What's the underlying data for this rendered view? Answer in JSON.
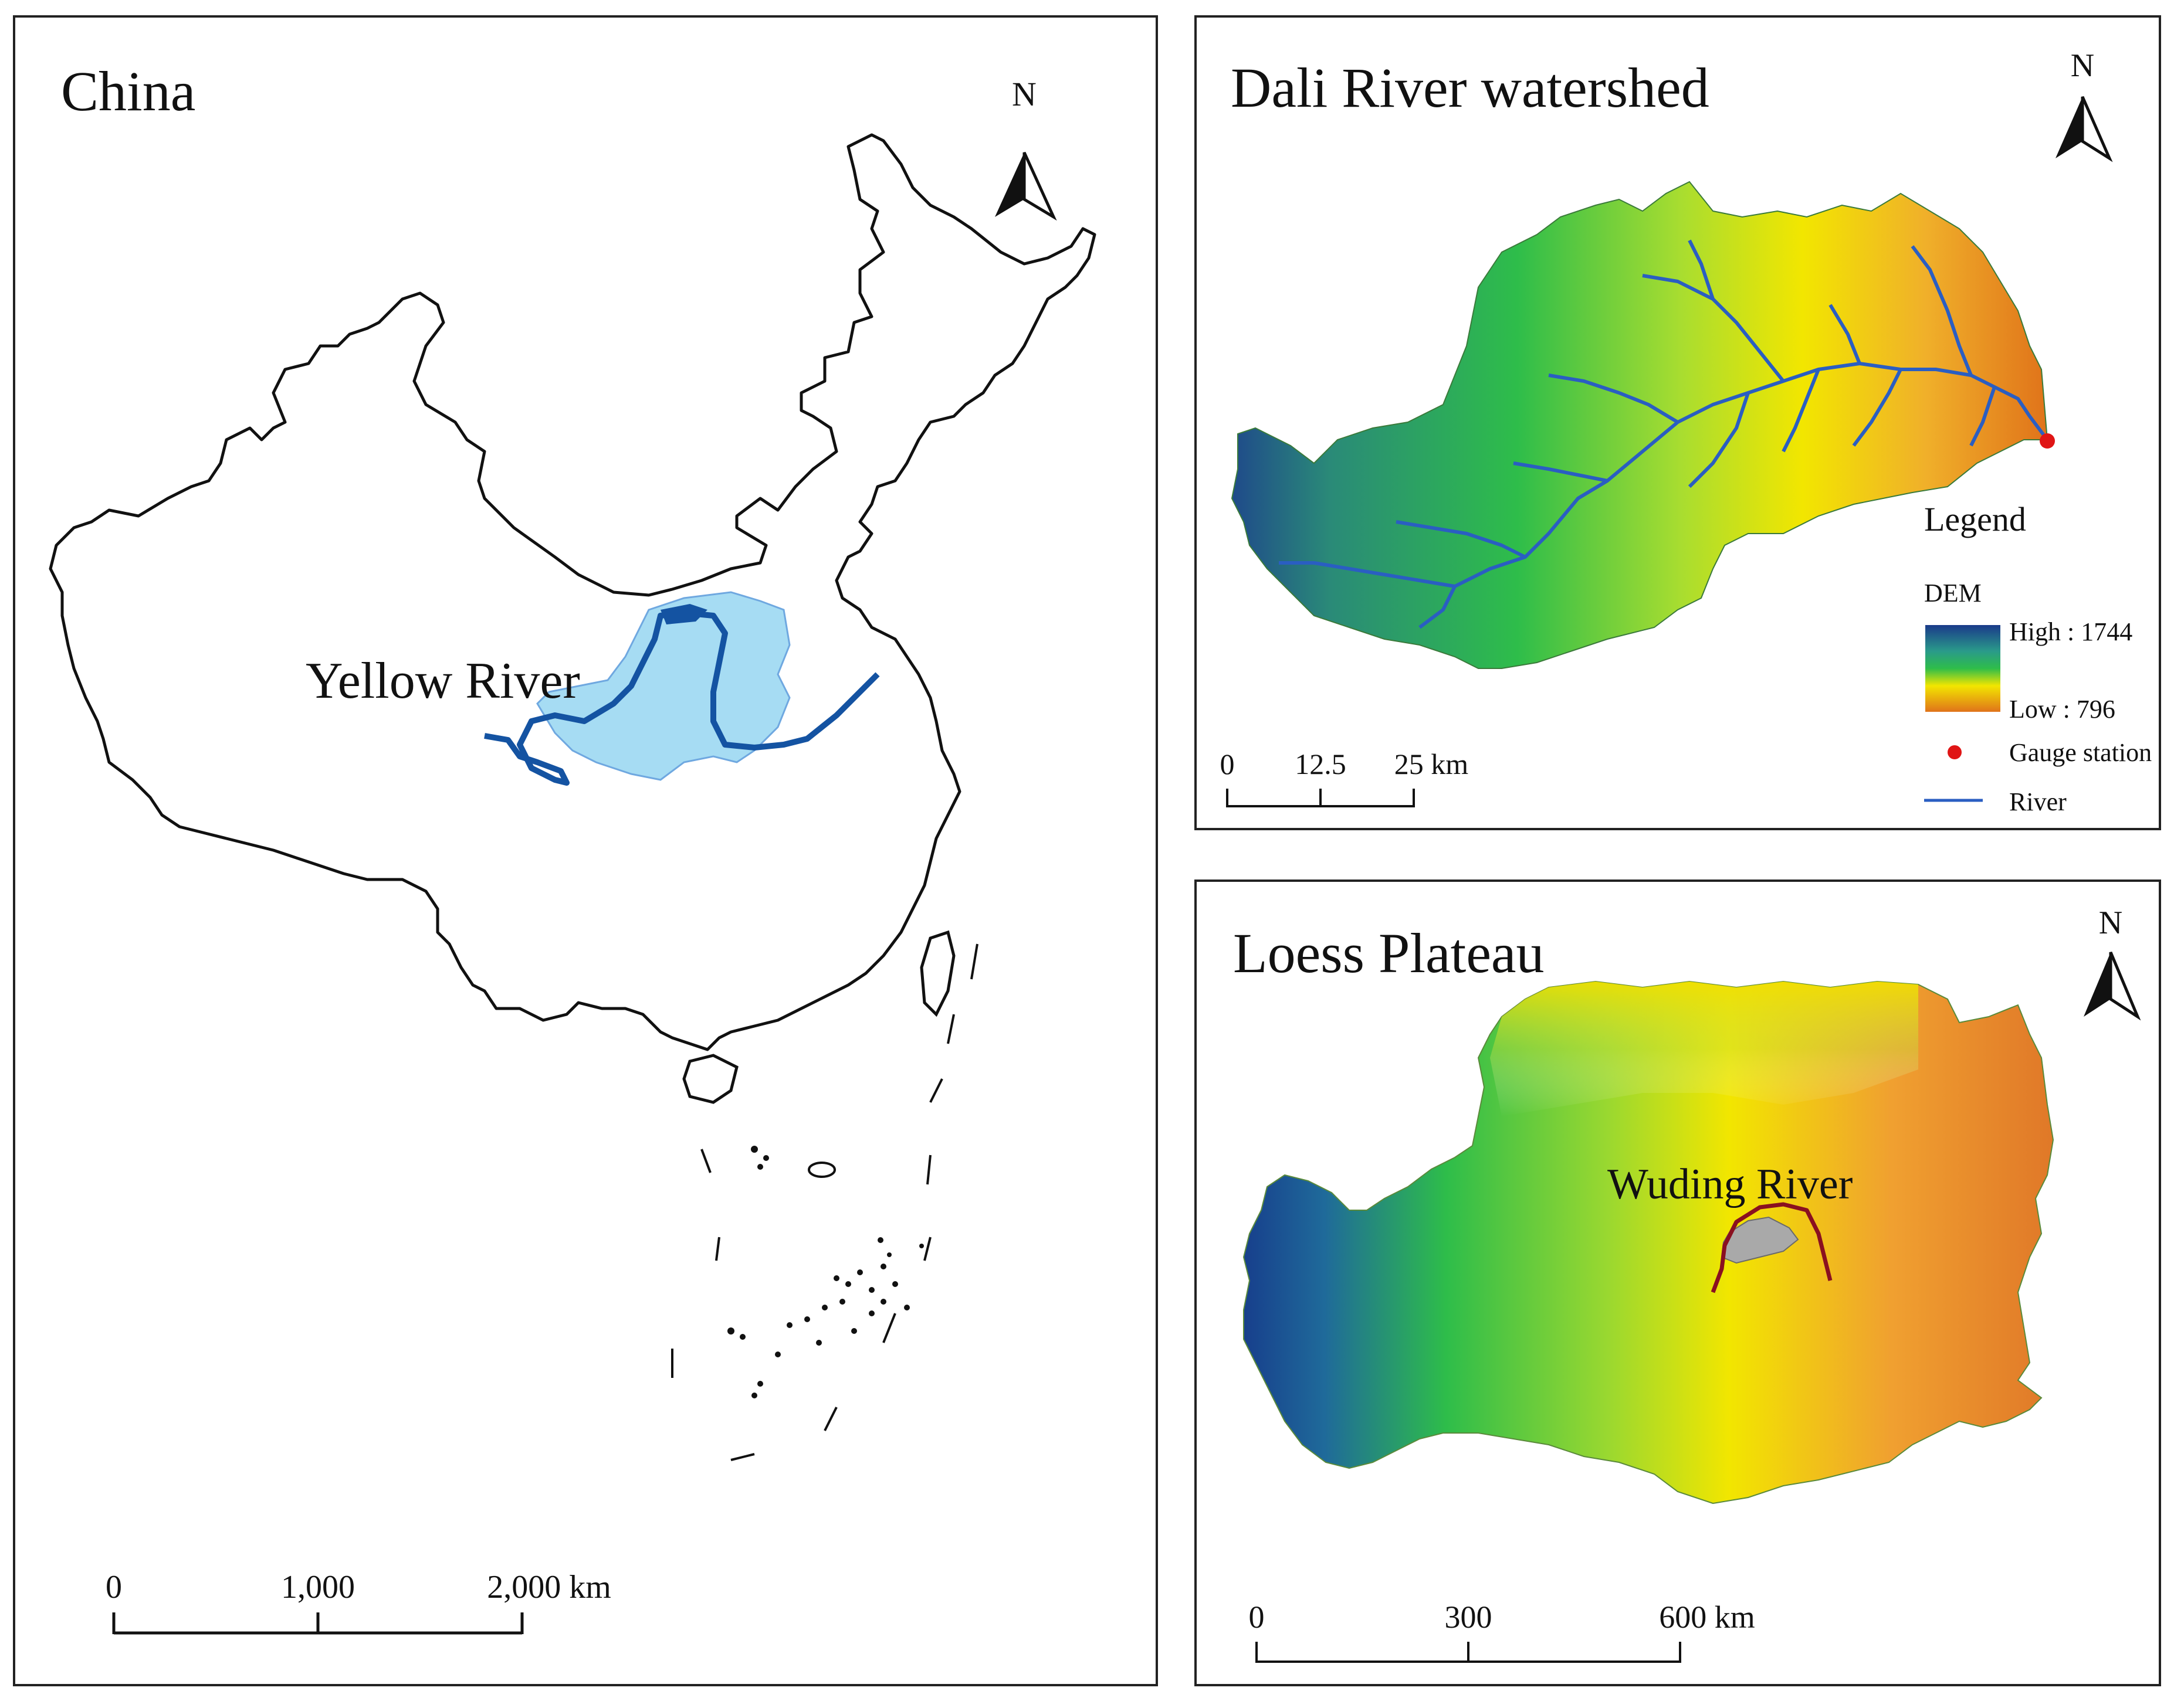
{
  "china_map": {
    "title": "China",
    "yellow_river_label": "Yellow River",
    "north_label": "N",
    "scale_bar": {
      "ticks": [
        "0",
        "1,000",
        "2,000 km"
      ]
    },
    "colors": {
      "basin_fill": "#a6dcf3",
      "river": "#1453a2",
      "outline": "#111111"
    }
  },
  "dali_map": {
    "title": "Dali River watershed",
    "north_label": "N",
    "legend": {
      "title": "Legend",
      "dem_label": "DEM",
      "high_label": "High : 1744",
      "low_label": "Low : 796",
      "gauge_label": "Gauge station",
      "river_label": "River"
    },
    "scale_bar": {
      "ticks": [
        "0",
        "12.5",
        "25 km"
      ]
    },
    "colors": {
      "dem_high": "#1a3a8a",
      "dem_mid": "#2ebd4a",
      "dem_yellow": "#f2e600",
      "dem_low": "#e0731a",
      "river": "#2a5ec2",
      "gauge": "#e01515"
    }
  },
  "loess_map": {
    "title": "Loess Plateau",
    "wuding_label": "Wuding River",
    "north_label": "N",
    "scale_bar": {
      "ticks": [
        "0",
        "300",
        "600 km"
      ]
    },
    "colors": {
      "wuding_river": "#8a1020",
      "wuding_basin": "#a9a9a9"
    }
  }
}
